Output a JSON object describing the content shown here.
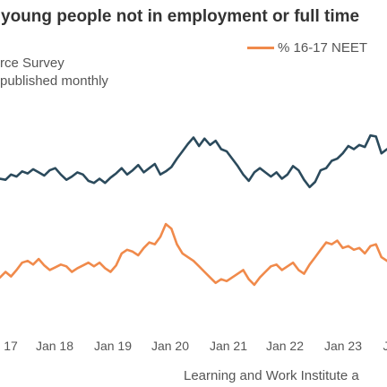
{
  "chart_data": {
    "type": "line",
    "title": "young people not in employment or full time",
    "subtitle_lines": [
      "rce Survey",
      "published monthly"
    ],
    "source": "Learning and Work Institute a",
    "x_ticks": [
      "17",
      "Jan 18",
      "Jan 19",
      "Jan 20",
      "Jan 21",
      "Jan 22",
      "Jan 23",
      "J"
    ],
    "series": [
      {
        "name": "",
        "color": "#2b4a5c",
        "values": [
          184,
          183,
          188,
          186,
          191,
          189,
          193,
          190,
          187,
          192,
          194,
          188,
          183,
          186,
          190,
          188,
          182,
          180,
          184,
          180,
          185,
          189,
          194,
          188,
          192,
          197,
          190,
          194,
          198,
          188,
          191,
          195,
          203,
          210,
          217,
          223,
          215,
          222,
          216,
          220,
          212,
          210,
          203,
          196,
          188,
          182,
          190,
          194,
          190,
          186,
          190,
          184,
          188,
          196,
          192,
          183,
          176,
          181,
          192,
          194,
          201,
          203,
          208,
          215,
          212,
          216,
          214,
          225,
          224,
          208,
          212
        ]
      },
      {
        "name": "% 16-17 NEET",
        "color": "#f08a4b",
        "values": [
          22,
          28,
          23,
          30,
          38,
          40,
          36,
          42,
          35,
          30,
          33,
          36,
          34,
          28,
          32,
          35,
          38,
          34,
          38,
          32,
          28,
          35,
          48,
          52,
          50,
          46,
          54,
          60,
          58,
          66,
          80,
          75,
          58,
          48,
          44,
          40,
          34,
          28,
          22,
          16,
          20,
          18,
          22,
          26,
          30,
          20,
          14,
          22,
          28,
          34,
          36,
          30,
          34,
          38,
          30,
          26,
          36,
          44,
          52,
          60,
          58,
          62,
          54,
          56,
          52,
          54,
          48,
          56,
          58,
          44,
          40
        ]
      }
    ],
    "grid": false
  }
}
